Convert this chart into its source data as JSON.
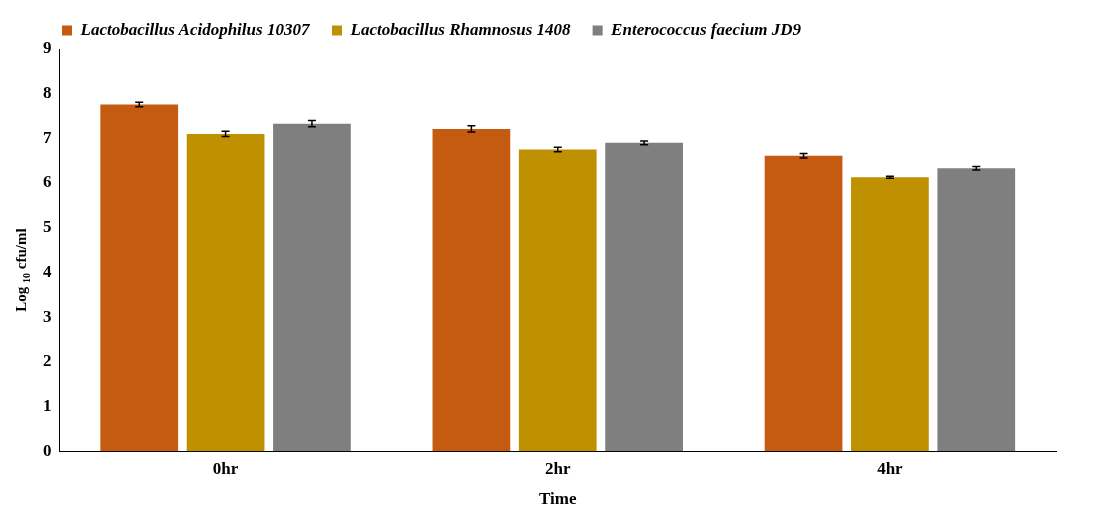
{
  "chart_data": {
    "type": "bar",
    "xlabel": "Time",
    "ylabel": "Log $_{10}$ cfu/ml",
    "categories": [
      "0hr",
      "2hr",
      "4hr"
    ],
    "series": [
      {
        "name": "Lactobacillus Acidophilus 10307",
        "color": "#c55a11",
        "values": [
          7.76,
          7.21,
          6.61
        ],
        "errors": [
          0.05,
          0.07,
          0.05
        ]
      },
      {
        "name": "Lactobacillus Rhamnosus 1408",
        "color": "#bf9000",
        "values": [
          7.1,
          6.75,
          6.13
        ],
        "errors": [
          0.06,
          0.05,
          0.02
        ]
      },
      {
        "name": "Enterococcus faecium JD9",
        "color": "#7f7f7f",
        "values": [
          7.33,
          6.9,
          6.33
        ],
        "errors": [
          0.07,
          0.04,
          0.04
        ]
      }
    ],
    "ylim": [
      0,
      9
    ],
    "yticks": [
      0,
      1,
      2,
      3,
      4,
      5,
      6,
      7,
      8,
      9
    ],
    "grid": false,
    "legend": "top"
  }
}
